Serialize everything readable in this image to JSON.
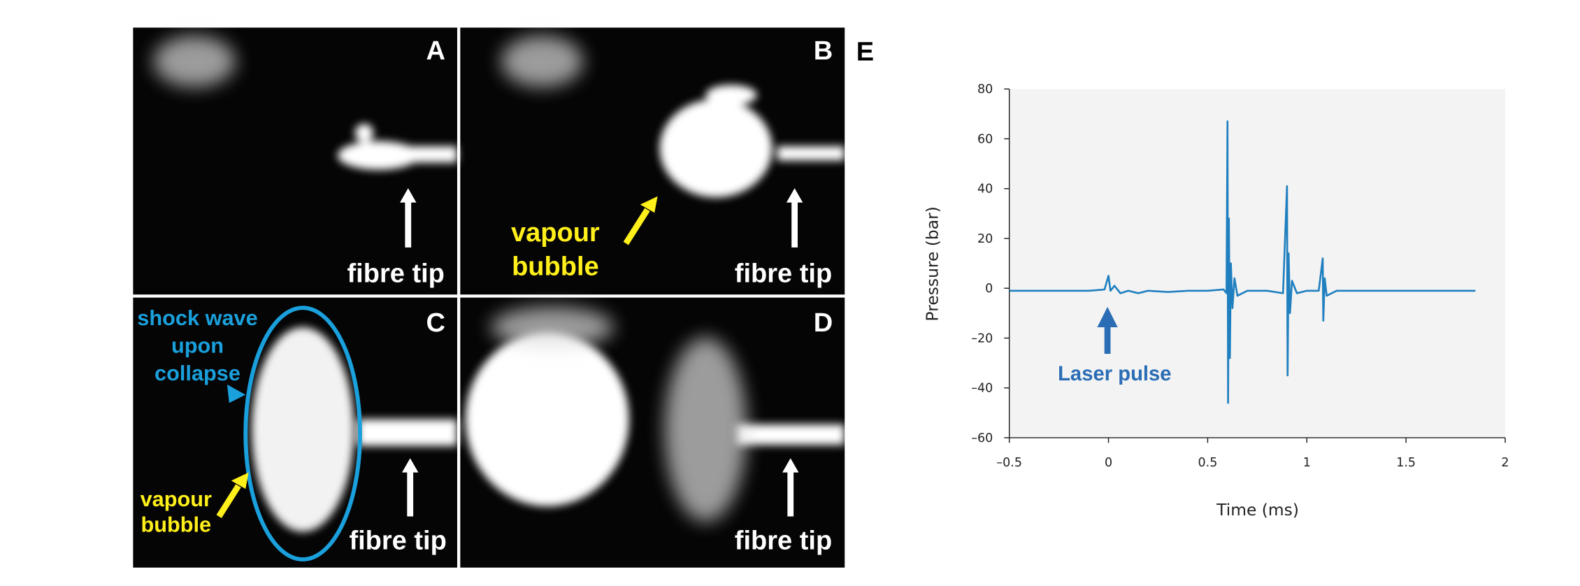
{
  "panels": [
    {
      "label": "A",
      "fibre": "fibre tip"
    },
    {
      "label": "B",
      "fibre": "fibre tip",
      "bubble": [
        "vapour",
        "bubble"
      ]
    },
    {
      "label": "C",
      "fibre": "fibre tip",
      "shock": [
        "shock wave",
        "upon",
        "collapse"
      ],
      "bubble": [
        "vapour",
        "bubble"
      ]
    },
    {
      "label": "D",
      "fibre": "fibre tip"
    }
  ],
  "chart_data": {
    "type": "line",
    "panel_label": "E",
    "x_label": "Time (ms)",
    "y_label": "Pressure (bar)",
    "annotation": "Laser pulse",
    "xlim": [
      -0.5,
      2
    ],
    "ylim": [
      -60,
      80
    ],
    "xticks": [
      {
        "value": -0.5,
        "label": "–0.5"
      },
      0,
      0.5,
      1,
      1.5,
      2
    ],
    "yticks": [
      {
        "value": -60,
        "label": "–60"
      },
      {
        "value": -40,
        "label": "–40"
      },
      {
        "value": -20,
        "label": "–20"
      },
      0,
      20,
      40,
      60,
      80
    ],
    "x": [
      -0.5,
      -0.3,
      -0.1,
      -0.02,
      0,
      0.01,
      0.03,
      0.06,
      0.1,
      0.15,
      0.2,
      0.3,
      0.4,
      0.5,
      0.58,
      0.595,
      0.6,
      0.603,
      0.607,
      0.612,
      0.617,
      0.625,
      0.635,
      0.65,
      0.7,
      0.8,
      0.88,
      0.9,
      0.903,
      0.908,
      0.915,
      0.925,
      0.95,
      1.0,
      1.06,
      1.08,
      1.083,
      1.09,
      1.1,
      1.15,
      1.3,
      1.5,
      1.7,
      1.85
    ],
    "series": [
      {
        "name": "Pressure",
        "color": "#1f7fbf",
        "values": [
          -1,
          -1,
          -1,
          -0.5,
          5,
          -1,
          1,
          -2,
          -1,
          -2,
          -1,
          -1.5,
          -1,
          -1,
          -0.5,
          -2,
          67,
          -46,
          28,
          -28,
          10,
          -8,
          4,
          -3,
          -1,
          -1,
          -2,
          41,
          -35,
          14,
          -10,
          3,
          -2,
          -1,
          -1,
          12,
          -13,
          4,
          -3,
          -1,
          -1,
          -1,
          -1,
          -1
        ]
      }
    ]
  }
}
